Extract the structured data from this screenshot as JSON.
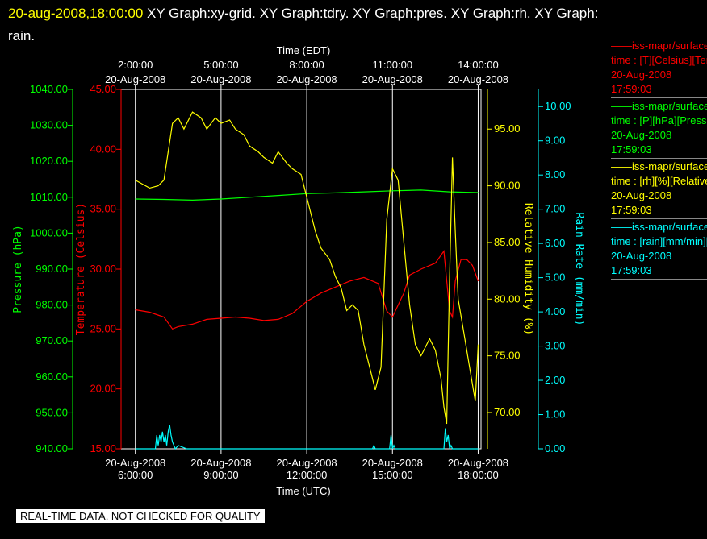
{
  "header": {
    "timestamp": "20-aug-2008,18:00:00",
    "line1": "XY Graph:xy-grid.  XY Graph:tdry.  XY Graph:pres.  XY Graph:rh.  XY Graph:",
    "line2": "rain."
  },
  "notice": "REAL-TIME DATA, NOT CHECKED FOR QUALITY",
  "chart_data": {
    "type": "line",
    "x_range_utc_hours": [
      5.5,
      18.1
    ],
    "top_axis": {
      "label": "Time (EDT)",
      "ticks": [
        {
          "hour": 6,
          "time": "2:00:00",
          "date": "20-Aug-2008"
        },
        {
          "hour": 9,
          "time": "5:00:00",
          "date": "20-Aug-2008"
        },
        {
          "hour": 12,
          "time": "8:00:00",
          "date": "20-Aug-2008"
        },
        {
          "hour": 15,
          "time": "11:00:00",
          "date": "20-Aug-2008"
        },
        {
          "hour": 18,
          "time": "14:00:00",
          "date": "20-Aug-2008"
        }
      ]
    },
    "bottom_axis": {
      "label": "Time (UTC)",
      "ticks": [
        {
          "hour": 6,
          "date": "20-Aug-2008",
          "time": "6:00:00"
        },
        {
          "hour": 9,
          "date": "20-Aug-2008",
          "time": "9:00:00"
        },
        {
          "hour": 12,
          "date": "20-Aug-2008",
          "time": "12:00:00"
        },
        {
          "hour": 15,
          "date": "20-Aug-2008",
          "time": "15:00:00"
        },
        {
          "hour": 18,
          "date": "20-Aug-2008",
          "time": "18:00:00"
        }
      ]
    },
    "axes": {
      "pressure": {
        "label": "Pressure (hPa)",
        "color": "#00ff00",
        "range": [
          940,
          1040
        ],
        "ticks": [
          "940.00",
          "950.00",
          "960.00",
          "970.00",
          "980.00",
          "990.00",
          "1000.00",
          "1010.00",
          "1020.00",
          "1030.00",
          "1040.00"
        ]
      },
      "temperature": {
        "label": "Temperature (Celsius)",
        "color": "#ff0000",
        "range": [
          15,
          45
        ],
        "ticks": [
          "15.00",
          "20.00",
          "25.00",
          "30.00",
          "35.00",
          "40.00",
          "45.00"
        ]
      },
      "humidity": {
        "label": "Relative Humidity (%)",
        "color": "#ffff00",
        "range": [
          66.8,
          98.5
        ],
        "ticks": [
          "70.00",
          "75.00",
          "80.00",
          "85.00",
          "90.00",
          "95.00"
        ]
      },
      "rain": {
        "label": "Rain Rate (mm/min)",
        "color": "#00ffff",
        "range": [
          0,
          10.5
        ],
        "ticks": [
          "0.00",
          "1.00",
          "2.00",
          "3.00",
          "4.00",
          "5.00",
          "6.00",
          "7.00",
          "8.00",
          "9.00",
          "10.00"
        ]
      }
    },
    "series": [
      {
        "name": "temperature",
        "color": "#ff0000",
        "x": [
          6.0,
          6.5,
          7.0,
          7.3,
          7.5,
          8.0,
          8.5,
          9.0,
          9.5,
          10.0,
          10.5,
          11.0,
          11.5,
          12.0,
          12.5,
          13.0,
          13.5,
          14.0,
          14.5,
          14.8,
          15.0,
          15.2,
          15.4,
          15.6,
          16.0,
          16.5,
          16.8,
          17.0,
          17.1,
          17.2,
          17.4,
          17.6,
          17.8,
          18.0
        ],
        "y": [
          26.6,
          26.4,
          26.0,
          25.0,
          25.2,
          25.4,
          25.8,
          25.9,
          26.0,
          25.9,
          25.7,
          25.8,
          26.3,
          27.3,
          28.0,
          28.5,
          29.0,
          29.3,
          28.8,
          26.5,
          26.0,
          27.0,
          28.0,
          29.5,
          30.0,
          30.5,
          31.5,
          26.5,
          26.0,
          29.0,
          30.8,
          30.8,
          30.3,
          29.0
        ]
      },
      {
        "name": "pressure",
        "color": "#00ff00",
        "x": [
          6.0,
          7.0,
          8.0,
          9.0,
          10.0,
          11.0,
          12.0,
          13.0,
          14.0,
          15.0,
          16.0,
          17.0,
          18.0
        ],
        "y": [
          1009.5,
          1009.4,
          1009.2,
          1009.5,
          1010.0,
          1010.5,
          1011.0,
          1011.2,
          1011.5,
          1011.8,
          1012.0,
          1011.5,
          1011.3
        ]
      },
      {
        "name": "humidity",
        "color": "#ffff00",
        "x": [
          6.0,
          6.5,
          6.8,
          7.0,
          7.3,
          7.5,
          7.7,
          8.0,
          8.3,
          8.5,
          8.8,
          9.0,
          9.3,
          9.5,
          9.8,
          10.0,
          10.3,
          10.5,
          10.8,
          11.0,
          11.3,
          11.5,
          11.8,
          12.0,
          12.3,
          12.5,
          12.8,
          13.0,
          13.2,
          13.4,
          13.6,
          13.8,
          14.0,
          14.2,
          14.4,
          14.6,
          14.8,
          15.0,
          15.2,
          15.4,
          15.6,
          15.8,
          16.0,
          16.3,
          16.5,
          16.7,
          16.8,
          16.9,
          17.0,
          17.1,
          17.2,
          17.3,
          17.5,
          17.7,
          17.9,
          18.0
        ],
        "y": [
          90.5,
          89.8,
          90.0,
          90.5,
          95.5,
          96.0,
          95.0,
          96.5,
          96.0,
          95.0,
          96.0,
          95.5,
          95.8,
          95.0,
          94.5,
          93.5,
          93.0,
          92.5,
          92.0,
          93.0,
          92.0,
          91.5,
          91.0,
          89.0,
          86.0,
          84.5,
          83.5,
          82.0,
          81.0,
          79.0,
          79.5,
          79.0,
          76.0,
          74.0,
          72.0,
          74.0,
          87.0,
          91.5,
          90.5,
          85.0,
          79.5,
          76.0,
          75.0,
          76.5,
          75.5,
          73.0,
          70.5,
          69.0,
          82.0,
          92.5,
          86.0,
          80.0,
          77.0,
          74.0,
          71.0,
          76.0
        ]
      },
      {
        "name": "rain",
        "color": "#00ffff",
        "x": [
          6.0,
          6.7,
          6.75,
          6.8,
          6.85,
          6.9,
          6.95,
          7.0,
          7.05,
          7.1,
          7.15,
          7.2,
          7.25,
          7.3,
          7.35,
          7.4,
          7.5,
          7.8,
          8.0,
          14.3,
          14.35,
          14.4,
          14.9,
          14.95,
          15.0,
          15.05,
          15.1,
          15.5,
          16.0,
          16.8,
          16.85,
          16.9,
          16.95,
          17.0,
          17.05,
          17.1,
          17.5,
          18.0
        ],
        "y": [
          0.0,
          0.0,
          0.4,
          0.1,
          0.4,
          0.2,
          0.5,
          0.2,
          0.4,
          0.1,
          0.5,
          0.7,
          0.4,
          0.2,
          0.1,
          0.0,
          0.1,
          0.0,
          0.0,
          0.0,
          0.1,
          0.0,
          0.0,
          0.4,
          0.0,
          0.1,
          0.0,
          0.0,
          0.0,
          0.0,
          0.6,
          0.2,
          0.4,
          0.0,
          0.1,
          0.0,
          0.0,
          0.0
        ]
      }
    ]
  },
  "legend": [
    {
      "color": "#ff0000",
      "line1": "iss-mapr/surface",
      "line2": "time : [T][Celsius][Temperature]",
      "date": "20-Aug-2008",
      "time": "17:59:03"
    },
    {
      "color": "#00ff00",
      "line1": "iss-mapr/surface",
      "line2": "time : [P][hPa][Pressure]",
      "date": "20-Aug-2008",
      "time": "17:59:03"
    },
    {
      "color": "#ffff00",
      "line1": "iss-mapr/surface",
      "line2": "time : [rh][%][Relative Humidity]",
      "date": "20-Aug-2008",
      "time": "17:59:03"
    },
    {
      "color": "#00ffff",
      "line1": "iss-mapr/surface",
      "line2": "time : [rain][mm/min][Rain Rate]",
      "date": "20-Aug-2008",
      "time": "17:59:03"
    }
  ]
}
